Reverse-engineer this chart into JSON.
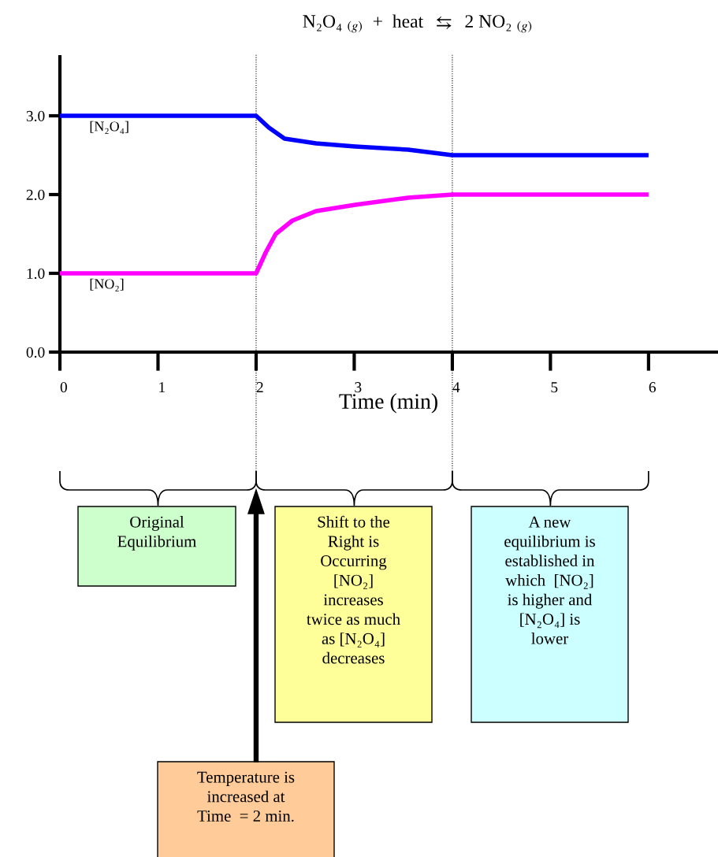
{
  "chart_data": {
    "type": "line",
    "title": "N₂O₄ $_{(g)}$  +  heat  ⇆  2 NO₂ $_{(g)}$",
    "xlabel": "Time (min)",
    "series": [
      {
        "name": "[N₂O₄]",
        "color": "#0000ff",
        "x": [
          0,
          2,
          2.13,
          2.29,
          2.61,
          3.01,
          3.55,
          4,
          6
        ],
        "values": [
          3.0,
          3.0,
          2.85,
          2.71,
          2.65,
          2.61,
          2.57,
          2.5,
          2.5
        ]
      },
      {
        "name": "[NO₂]",
        "color": "#ff00ff",
        "x": [
          0,
          2,
          2.1,
          2.2,
          2.37,
          2.61,
          3.01,
          3.55,
          4,
          6
        ],
        "values": [
          1.0,
          1.0,
          1.27,
          1.5,
          1.67,
          1.79,
          1.87,
          1.96,
          2.0,
          2.0
        ]
      }
    ],
    "xlim": [
      0,
      6.7
    ],
    "ylim": [
      0,
      3.75
    ],
    "xticks": [
      0,
      1,
      2,
      3,
      4,
      5,
      6
    ],
    "yticks": [
      {
        "value": 0,
        "label": "0.0"
      },
      {
        "value": 1,
        "label": "1.0"
      },
      {
        "value": 2,
        "label": "2.0"
      },
      {
        "value": 3,
        "label": "3.0"
      }
    ],
    "ref_lines": [
      {
        "axis": "x",
        "value": 2,
        "line_style": "dotted",
        "color": "#000000"
      },
      {
        "axis": "x",
        "value": 4,
        "line_style": "dotted",
        "color": "#000000"
      }
    ],
    "annotations": [
      "Original\nEquilibrium",
      "Shift to the\nRight is\nOccurring\n[NO₂]\nincreases\ntwice as much\nas [N₂O₄]\ndecreases",
      "A new\nequilibrium is\nestablished in\nwhich  [NO₂]\nis higher and\n[N₂O₄] is\nlower",
      "Temperature is\nincreased at\nTime  = 2 min."
    ],
    "grid": false,
    "legend": false
  }
}
